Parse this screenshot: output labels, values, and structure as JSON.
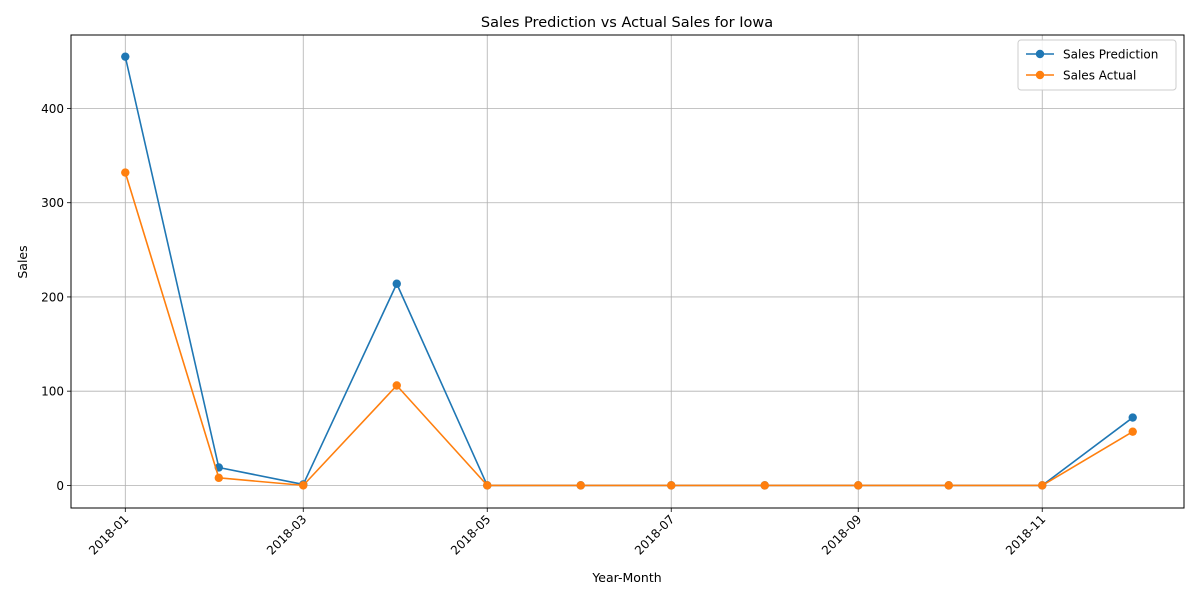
{
  "chart_data": {
    "type": "line",
    "title": "Sales Prediction vs Actual Sales for Iowa",
    "xlabel": "Year-Month",
    "ylabel": "Sales",
    "x": [
      "2018-01-01",
      "2018-02-01",
      "2018-03-01",
      "2018-04-01",
      "2018-05-01",
      "2018-06-01",
      "2018-07-01",
      "2018-08-01",
      "2018-09-01",
      "2018-10-01",
      "2018-11-01",
      "2018-12-01"
    ],
    "x_tick_labels": [
      "2018-01",
      "2018-03",
      "2018-05",
      "2018-07",
      "2018-09",
      "2018-11"
    ],
    "x_tick_dates": [
      "2018-01-01",
      "2018-03-01",
      "2018-05-01",
      "2018-07-01",
      "2018-09-01",
      "2018-11-01"
    ],
    "y_ticks": [
      0,
      100,
      200,
      300,
      400
    ],
    "xlim": [
      "2017-12-14",
      "2018-12-18"
    ],
    "ylim": [
      -24,
      478
    ],
    "grid": true,
    "legend_position": "top-right",
    "series": [
      {
        "name": "Sales Prediction",
        "color": "#1f77b4",
        "values": [
          455,
          19,
          1,
          214,
          0,
          0,
          0,
          0,
          0,
          0,
          0,
          72
        ]
      },
      {
        "name": "Sales Actual",
        "color": "#ff7f0e",
        "values": [
          332,
          8,
          0,
          106,
          0,
          0,
          0,
          0,
          0,
          0,
          0,
          57
        ]
      }
    ]
  }
}
